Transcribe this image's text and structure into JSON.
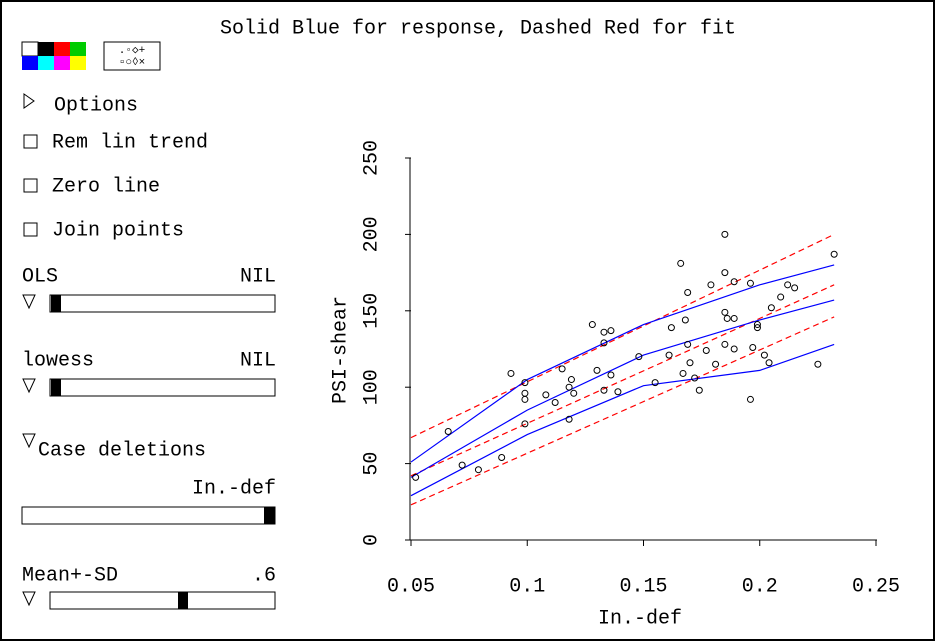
{
  "ui": {
    "options": "Options",
    "rem_lin_trend": "Rem lin trend",
    "zero_line": "Zero line",
    "join_points": "Join points",
    "ols_label": "OLS",
    "ols_value": "NIL",
    "lowess_label": "lowess",
    "lowess_value": "NIL",
    "case_deletions": "Case deletions",
    "case_var": "In.-def",
    "mean_sd_label": "Mean+-SD",
    "mean_sd_value": ".6"
  },
  "chart_data": {
    "type": "scatter",
    "title": "Solid Blue for response, Dashed Red for fit",
    "x_label": "In.-def",
    "y_label": "PSI-shear",
    "xlim": [
      0.05,
      0.25
    ],
    "ylim": [
      0,
      250
    ],
    "xticks": [
      0.05,
      0.1,
      0.15,
      0.2,
      0.25
    ],
    "yticks": [
      0,
      50,
      100,
      150,
      200,
      250
    ],
    "color": "#000000",
    "x": [
      0.052,
      0.066,
      0.072,
      0.079,
      0.089,
      0.093,
      0.099,
      0.099,
      0.099,
      0.099,
      0.108,
      0.112,
      0.115,
      0.118,
      0.118,
      0.119,
      0.12,
      0.128,
      0.13,
      0.133,
      0.133,
      0.136,
      0.133,
      0.136,
      0.139,
      0.148,
      0.155,
      0.161,
      0.162,
      0.166,
      0.167,
      0.169,
      0.169,
      0.168,
      0.17,
      0.172,
      0.174,
      0.177,
      0.179,
      0.181,
      0.185,
      0.185,
      0.185,
      0.185,
      0.186,
      0.189,
      0.189,
      0.189,
      0.196,
      0.196,
      0.197,
      0.199,
      0.199,
      0.202,
      0.204,
      0.205,
      0.209,
      0.212,
      0.215,
      0.225,
      0.232
    ],
    "values": [
      41,
      71,
      49,
      46,
      54,
      109,
      103,
      96,
      92,
      76,
      95,
      90,
      112,
      100,
      79,
      105,
      96,
      141,
      111,
      136,
      129,
      137,
      98,
      108,
      97,
      120,
      103,
      121,
      139,
      181,
      109,
      128,
      162,
      144,
      116,
      106,
      98,
      124,
      167,
      115,
      200,
      175,
      149,
      128,
      145,
      169,
      145,
      125,
      168,
      92,
      126,
      139,
      141,
      121,
      116,
      152,
      159,
      167,
      165,
      115,
      187
    ],
    "lines": [
      {
        "color": "#ff0000",
        "dashed": true,
        "x": [
          0.05,
          0.232
        ],
        "values": [
          42,
          167
        ]
      },
      {
        "color": "#ff0000",
        "dashed": true,
        "x": [
          0.05,
          0.232
        ],
        "values": [
          67,
          200
        ]
      },
      {
        "color": "#ff0000",
        "dashed": true,
        "x": [
          0.05,
          0.232
        ],
        "values": [
          23,
          146
        ]
      },
      {
        "color": "#0000ff",
        "dashed": false,
        "x": [
          0.05,
          0.1,
          0.15,
          0.2,
          0.232
        ],
        "values": [
          41,
          85,
          121,
          144,
          157
        ]
      },
      {
        "color": "#0000ff",
        "dashed": false,
        "x": [
          0.05,
          0.1,
          0.15,
          0.2,
          0.232
        ],
        "values": [
          51,
          105,
          141,
          167,
          180
        ]
      },
      {
        "color": "#0000ff",
        "dashed": false,
        "x": [
          0.05,
          0.1,
          0.15,
          0.2,
          0.232
        ],
        "values": [
          29,
          69,
          101,
          111,
          128
        ]
      }
    ]
  }
}
